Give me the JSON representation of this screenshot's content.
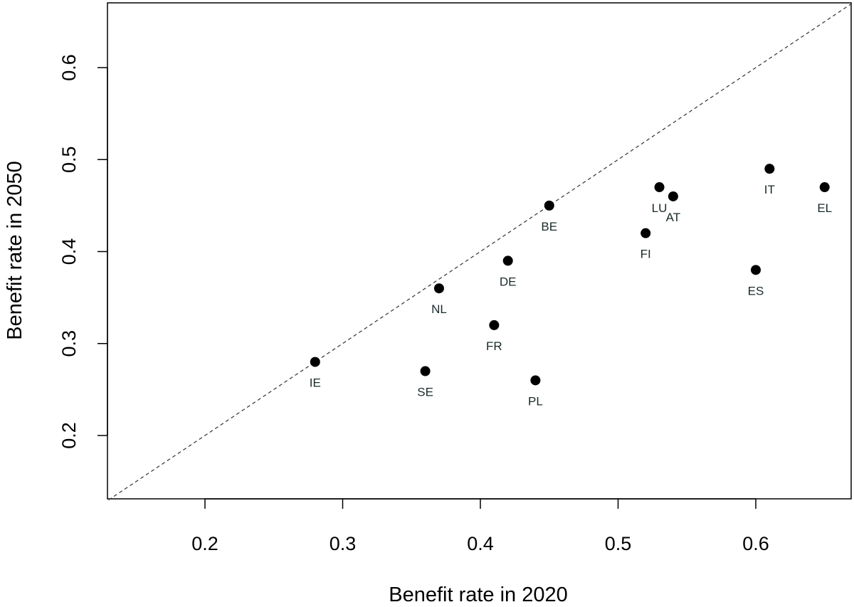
{
  "chart_data": {
    "type": "scatter",
    "title": "",
    "xlabel": "Benefit rate in 2020",
    "ylabel": "Benefit rate in 2050",
    "xlim": [
      0.13,
      0.67
    ],
    "ylim": [
      0.13,
      0.67
    ],
    "x_ticks": [
      {
        "value": 0.2,
        "label": "0.2"
      },
      {
        "value": 0.3,
        "label": "0.3"
      },
      {
        "value": 0.4,
        "label": "0.4"
      },
      {
        "value": 0.5,
        "label": "0.5"
      },
      {
        "value": 0.6,
        "label": "0.6"
      }
    ],
    "y_ticks": [
      {
        "value": 0.2,
        "label": "0.2"
      },
      {
        "value": 0.3,
        "label": "0.3"
      },
      {
        "value": 0.4,
        "label": "0.4"
      },
      {
        "value": 0.5,
        "label": "0.5"
      },
      {
        "value": 0.6,
        "label": "0.6"
      }
    ],
    "reference_line": "y = x",
    "grid": false,
    "legend": "none",
    "point_color": "#000000",
    "points": [
      {
        "label": "IE",
        "x": 0.28,
        "y": 0.28
      },
      {
        "label": "SE",
        "x": 0.36,
        "y": 0.27
      },
      {
        "label": "NL",
        "x": 0.37,
        "y": 0.36
      },
      {
        "label": "FR",
        "x": 0.41,
        "y": 0.32
      },
      {
        "label": "DE",
        "x": 0.42,
        "y": 0.39
      },
      {
        "label": "PL",
        "x": 0.44,
        "y": 0.26
      },
      {
        "label": "BE",
        "x": 0.45,
        "y": 0.45
      },
      {
        "label": "FI",
        "x": 0.52,
        "y": 0.42
      },
      {
        "label": "LU",
        "x": 0.53,
        "y": 0.47
      },
      {
        "label": "AT",
        "x": 0.54,
        "y": 0.46
      },
      {
        "label": "ES",
        "x": 0.6,
        "y": 0.38
      },
      {
        "label": "IT",
        "x": 0.61,
        "y": 0.49
      },
      {
        "label": "EL",
        "x": 0.65,
        "y": 0.47
      }
    ]
  }
}
